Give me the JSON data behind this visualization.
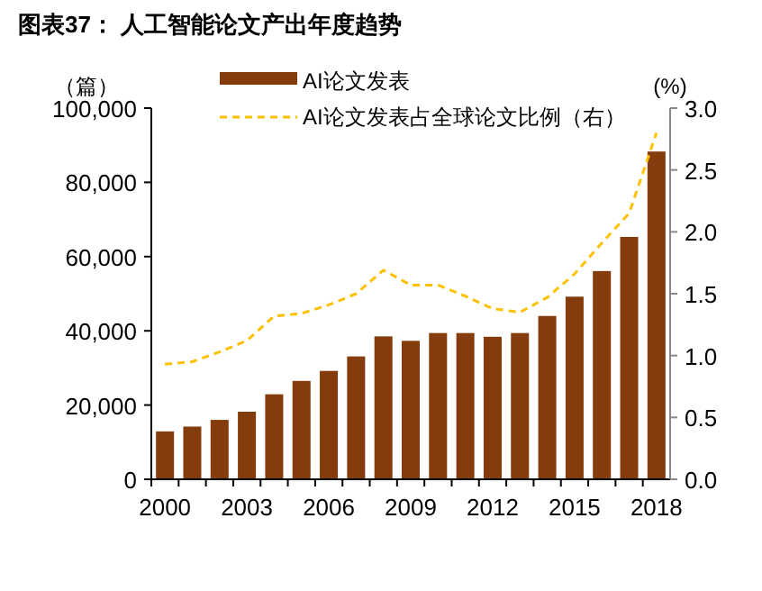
{
  "chart_data": {
    "type": "bar",
    "title": "图表37：  人工智能论文产出年度趋势",
    "categories": [
      "2000",
      null,
      null,
      "2003",
      null,
      null,
      "2006",
      null,
      null,
      "2009",
      null,
      null,
      "2012",
      null,
      null,
      "2015",
      null,
      null,
      "2018"
    ],
    "series": [
      {
        "name": "AI论文发表",
        "color": "#843c0c",
        "values": [
          12900,
          14200,
          16000,
          18200,
          22900,
          26500,
          29200,
          33100,
          38500,
          37300,
          39400,
          39400,
          38400,
          39400,
          44000,
          49200,
          56100,
          65300,
          88300
        ]
      },
      {
        "name": "AI论文发表占全球论文比例（右）",
        "type": "line",
        "axis": "y2",
        "color": "#ffc000",
        "line_style": "dashed",
        "values": [
          0.93,
          0.95,
          1.03,
          1.12,
          1.32,
          1.34,
          1.41,
          1.5,
          1.69,
          1.57,
          1.57,
          1.48,
          1.38,
          1.35,
          1.47,
          1.66,
          1.91,
          2.15,
          2.8
        ]
      }
    ],
    "ylabel": "（篇）",
    "y2label": "(%)",
    "ylim": [
      0,
      100000
    ],
    "yticks": [
      {
        "value": 0,
        "label": "0"
      },
      {
        "value": 20000,
        "label": "20,000"
      },
      {
        "value": 40000,
        "label": "40,000"
      },
      {
        "value": 60000,
        "label": "60,000"
      },
      {
        "value": 80000,
        "label": "80,000"
      },
      {
        "value": 100000,
        "label": "100,000"
      }
    ],
    "y2lim": [
      0,
      3
    ],
    "y2ticks": [
      {
        "value": 0,
        "label": "0.0"
      },
      {
        "value": 0.5,
        "label": "0.5"
      },
      {
        "value": 1,
        "label": "1.0"
      },
      {
        "value": 1.5,
        "label": "1.5"
      },
      {
        "value": 2,
        "label": "2.0"
      },
      {
        "value": 2.5,
        "label": "2.5"
      },
      {
        "value": 3,
        "label": "3.0"
      }
    ],
    "legend": "top",
    "grid": false
  }
}
